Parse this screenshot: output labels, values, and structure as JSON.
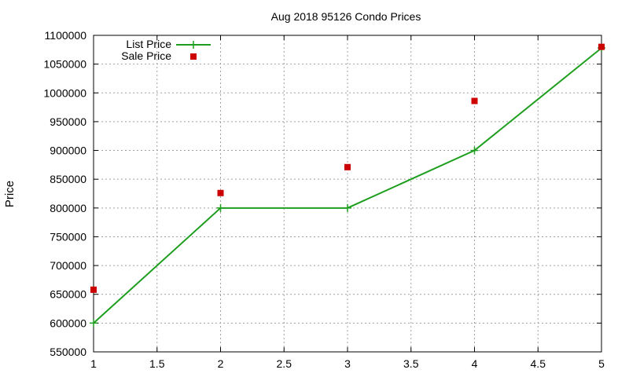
{
  "chart_data": {
    "type": "line",
    "title": "Aug 2018 95126 Condo Prices",
    "xlabel": "",
    "ylabel": "Price",
    "xlim": [
      1,
      5
    ],
    "ylim": [
      550000,
      1100000
    ],
    "x_ticks": [
      "1",
      "1.5",
      "2",
      "2.5",
      "3",
      "3.5",
      "4",
      "4.5",
      "5"
    ],
    "y_ticks": [
      "550000",
      "600000",
      "650000",
      "700000",
      "750000",
      "800000",
      "850000",
      "900000",
      "950000",
      "1000000",
      "1050000",
      "1100000"
    ],
    "grid": true,
    "legend_position": "top-left",
    "series": [
      {
        "name": "List Price",
        "style": "line-with-plus-markers",
        "color": "#1e9e1e",
        "x": [
          1,
          2,
          3,
          4,
          5
        ],
        "y": [
          600000,
          800000,
          800000,
          900000,
          1078000
        ]
      },
      {
        "name": "Sale Price",
        "style": "square-markers",
        "color": "#cc0000",
        "x": [
          1,
          2,
          3,
          4,
          5
        ],
        "y": [
          658000,
          826000,
          871000,
          986000,
          1080000
        ]
      }
    ]
  }
}
